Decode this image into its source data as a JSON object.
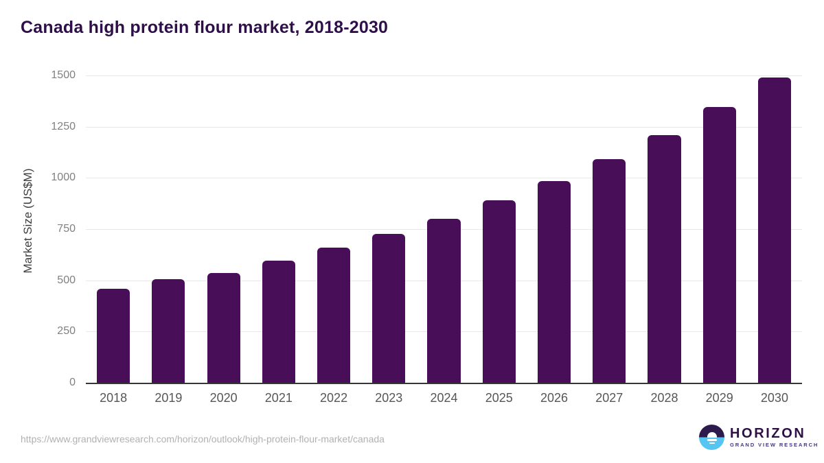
{
  "chart_data": {
    "type": "bar",
    "title": "Canada high protein flour market, 2018-2030",
    "ylabel": "Market Size (US$M)",
    "xlabel": "",
    "categories": [
      "2018",
      "2019",
      "2020",
      "2021",
      "2022",
      "2023",
      "2024",
      "2025",
      "2026",
      "2027",
      "2028",
      "2029",
      "2030"
    ],
    "values": [
      460,
      505,
      535,
      595,
      660,
      725,
      800,
      890,
      985,
      1090,
      1210,
      1345,
      1490
    ],
    "ylim": [
      0,
      1500
    ],
    "yticks": [
      0,
      250,
      500,
      750,
      1000,
      1250,
      1500
    ],
    "grid": "horizontal",
    "legend": "none",
    "bar_color": "#480f58"
  },
  "colors": {
    "title": "#2e0f49",
    "bar": "#480f58",
    "gridline": "#e8e8e8",
    "axis_line": "#363636",
    "y_tick_text": "#808080",
    "x_tick_text": "#565656",
    "footer_text": "#b1b1b1",
    "logo_dark_purple": "#2d1b4e",
    "logo_light_blue": "#57c5f2"
  },
  "footer": {
    "source_url": "https://www.grandviewresearch.com/horizon/outlook/high-protein-flour-market/canada"
  },
  "logo": {
    "name": "HORIZON",
    "subtitle": "GRAND VIEW RESEARCH"
  }
}
